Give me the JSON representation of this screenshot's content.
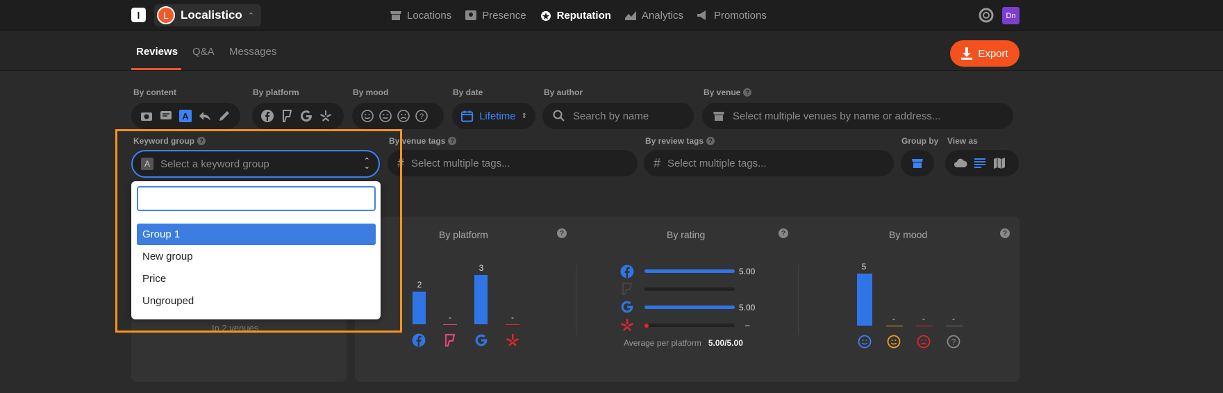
{
  "app": {
    "logo_letter": "l",
    "org_initial": "L",
    "org_name": "Localistico"
  },
  "nav": [
    {
      "label": "Locations",
      "icon": "store-icon"
    },
    {
      "label": "Presence",
      "icon": "pin-icon"
    },
    {
      "label": "Reputation",
      "icon": "reputation-icon"
    },
    {
      "label": "Analytics",
      "icon": "analytics-icon"
    },
    {
      "label": "Promotions",
      "icon": "megaphone-icon"
    }
  ],
  "user": {
    "initials": "Dn"
  },
  "tabs": [
    "Reviews",
    "Q&A",
    "Messages"
  ],
  "export_label": "Export",
  "filters": {
    "by_content": "By content",
    "by_platform": "By platform",
    "by_mood": "By mood",
    "by_date": "By date",
    "date_value": "Lifetime",
    "by_author": "By author",
    "author_placeholder": "Search by name",
    "by_venue": "By venue",
    "venue_placeholder": "Select multiple venues by name or address...",
    "keyword_group": "Keyword group",
    "keyword_placeholder": "Select a keyword group",
    "by_venue_tags": "By venue tags",
    "venue_tags_placeholder": "Select multiple tags...",
    "by_review_tags": "By review tags",
    "review_tags_placeholder": "Select multiple tags...",
    "group_by": "Group by",
    "view_as": "View as"
  },
  "dropdown": {
    "search_value": "",
    "options": [
      "Group 1",
      "New group",
      "Price",
      "Ungrouped"
    ],
    "selected": "Group 1"
  },
  "panels": {
    "venues_text": "In 2 venues",
    "by_platform": {
      "title": "By platform",
      "values": [
        "2",
        "-",
        "3",
        "-"
      ]
    },
    "by_rating": {
      "title": "By rating",
      "rows": [
        {
          "platform": "facebook",
          "value": "5.00",
          "fill": 1.0
        },
        {
          "platform": "foursquare",
          "value": "",
          "fill": 0
        },
        {
          "platform": "google",
          "value": "5.00",
          "fill": 1.0
        },
        {
          "platform": "yelp",
          "value": "–",
          "fill": 0
        }
      ],
      "avg_label": "Average per platform",
      "avg_value": "5.00/5.00"
    },
    "by_mood": {
      "title": "By mood",
      "values": [
        "5",
        "-",
        "-",
        "-"
      ]
    }
  },
  "colors": {
    "accent": "#f4511e",
    "blue": "#3b82f6",
    "bar": "#2f75e6",
    "highlight": "#f7931e"
  }
}
